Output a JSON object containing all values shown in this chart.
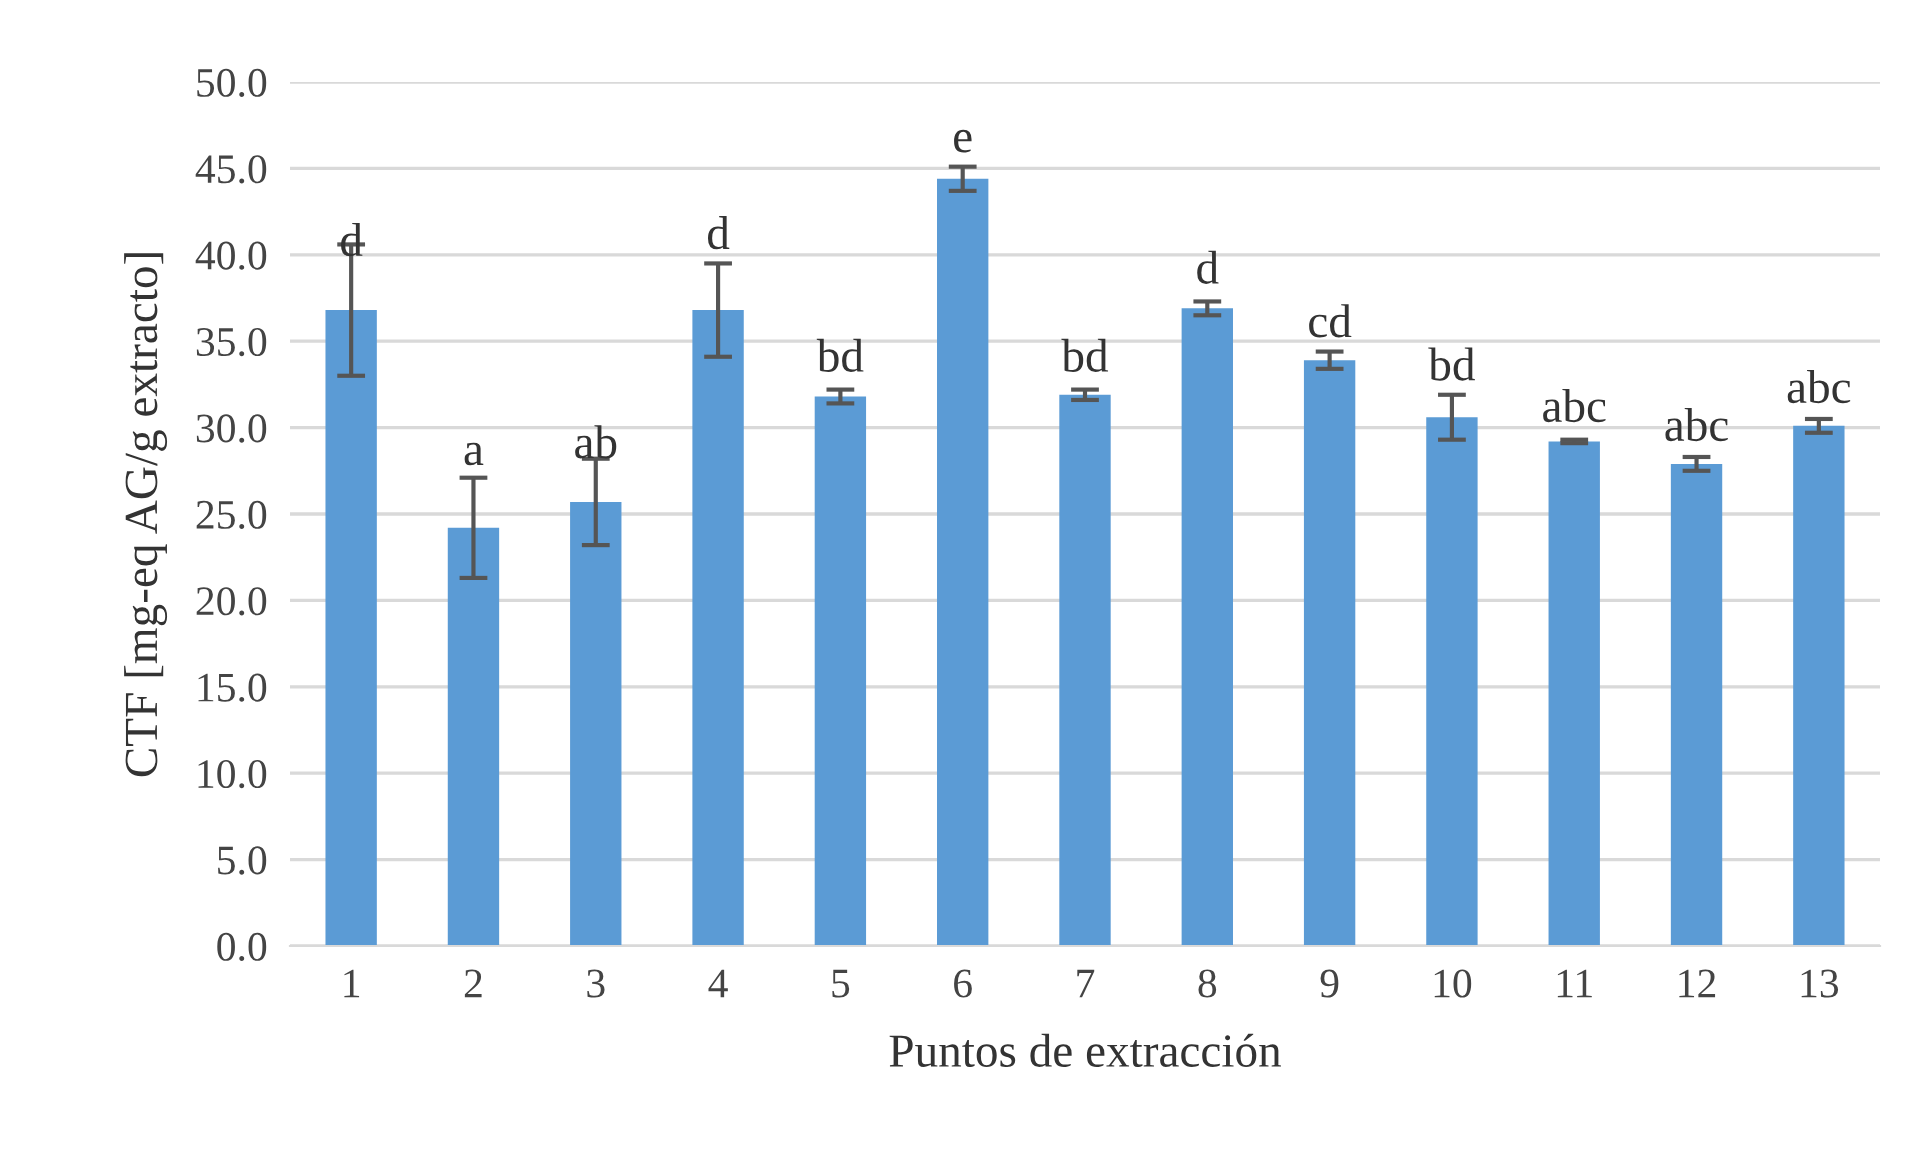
{
  "chart_data": {
    "type": "bar",
    "xlabel": "Puntos de extracción",
    "ylabel": "CTF [mg-eq AG/g extracto]",
    "categories": [
      "1",
      "2",
      "3",
      "4",
      "5",
      "6",
      "7",
      "8",
      "9",
      "10",
      "11",
      "12",
      "13"
    ],
    "values": [
      36.8,
      24.2,
      25.7,
      36.8,
      31.8,
      44.4,
      31.9,
      36.9,
      33.9,
      30.6,
      29.2,
      27.9,
      30.1
    ],
    "errors": [
      3.8,
      2.9,
      2.5,
      2.7,
      0.4,
      0.7,
      0.3,
      0.4,
      0.5,
      1.3,
      0.1,
      0.4,
      0.4
    ],
    "color": "#5b9bd5",
    "ylim": [
      0,
      50
    ],
    "yticks": [
      {
        "value": 0,
        "label": "0.0"
      },
      {
        "value": 5,
        "label": "5.0"
      },
      {
        "value": 10,
        "label": "10.0"
      },
      {
        "value": 15,
        "label": "15.0"
      },
      {
        "value": 20,
        "label": "20.0"
      },
      {
        "value": 25,
        "label": "25.0"
      },
      {
        "value": 30,
        "label": "30.0"
      },
      {
        "value": 35,
        "label": "35.0"
      },
      {
        "value": 40,
        "label": "40.0"
      },
      {
        "value": 45,
        "label": "45.0"
      },
      {
        "value": 50,
        "label": "50.0"
      }
    ],
    "grid": "y",
    "annotations": [
      {
        "text": "d",
        "x": "1",
        "y": 39.2
      },
      {
        "text": "a",
        "x": "2",
        "y": 27.1
      },
      {
        "text": "ab",
        "x": "3",
        "y": 27.5
      },
      {
        "text": "d",
        "x": "4",
        "y": 39.6
      },
      {
        "text": "bd",
        "x": "5",
        "y": 32.5
      },
      {
        "text": "e",
        "x": "6",
        "y": 45.2
      },
      {
        "text": "bd",
        "x": "7",
        "y": 32.5
      },
      {
        "text": "d",
        "x": "8",
        "y": 37.6
      },
      {
        "text": "cd",
        "x": "9",
        "y": 34.5
      },
      {
        "text": "bd",
        "x": "10",
        "y": 32.0
      },
      {
        "text": "abc",
        "x": "11",
        "y": 29.6
      },
      {
        "text": "abc",
        "x": "12",
        "y": 28.5
      },
      {
        "text": "abc",
        "x": "13",
        "y": 30.7
      }
    ]
  }
}
